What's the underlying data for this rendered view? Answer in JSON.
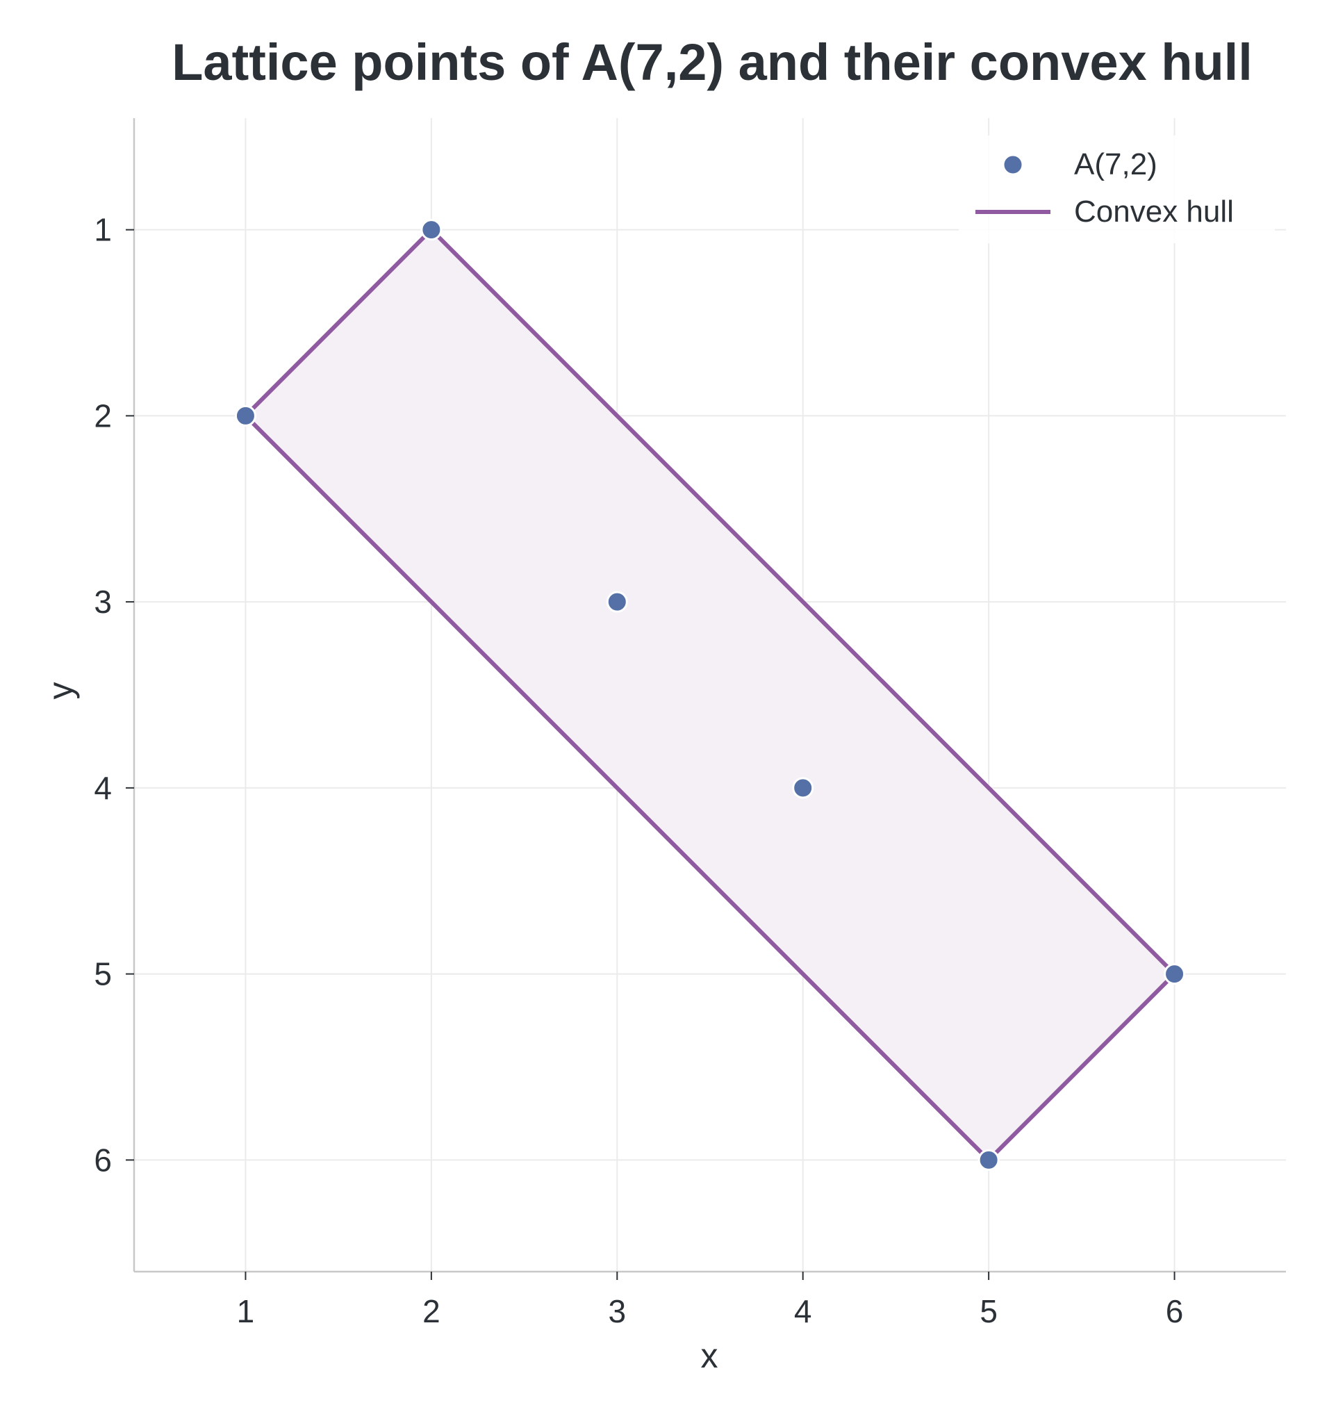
{
  "chart_data": {
    "type": "scatter",
    "title": "Lattice points of A(7,2) and their convex hull",
    "xlabel": "x",
    "ylabel": "y",
    "xlim": [
      0.4,
      6.6
    ],
    "ylim": [
      6.6,
      0.4
    ],
    "y_inverted": true,
    "xticks": [
      "1",
      "2",
      "3",
      "4",
      "5",
      "6"
    ],
    "yticks": [
      "1",
      "2",
      "3",
      "4",
      "5",
      "6"
    ],
    "grid": true,
    "legend_position": "top-right",
    "series": [
      {
        "name": "A(7,2)",
        "kind": "points",
        "color": "#5470a6",
        "x": [
          1,
          2,
          3,
          4,
          5,
          6
        ],
        "y": [
          2,
          1,
          3,
          4,
          6,
          5
        ]
      },
      {
        "name": "Convex hull",
        "kind": "polygon",
        "color": "#8f5aa0",
        "fill": "#f5eff6",
        "x": [
          1,
          2,
          6,
          5,
          1
        ],
        "y": [
          2,
          1,
          5,
          6,
          2
        ]
      }
    ]
  }
}
